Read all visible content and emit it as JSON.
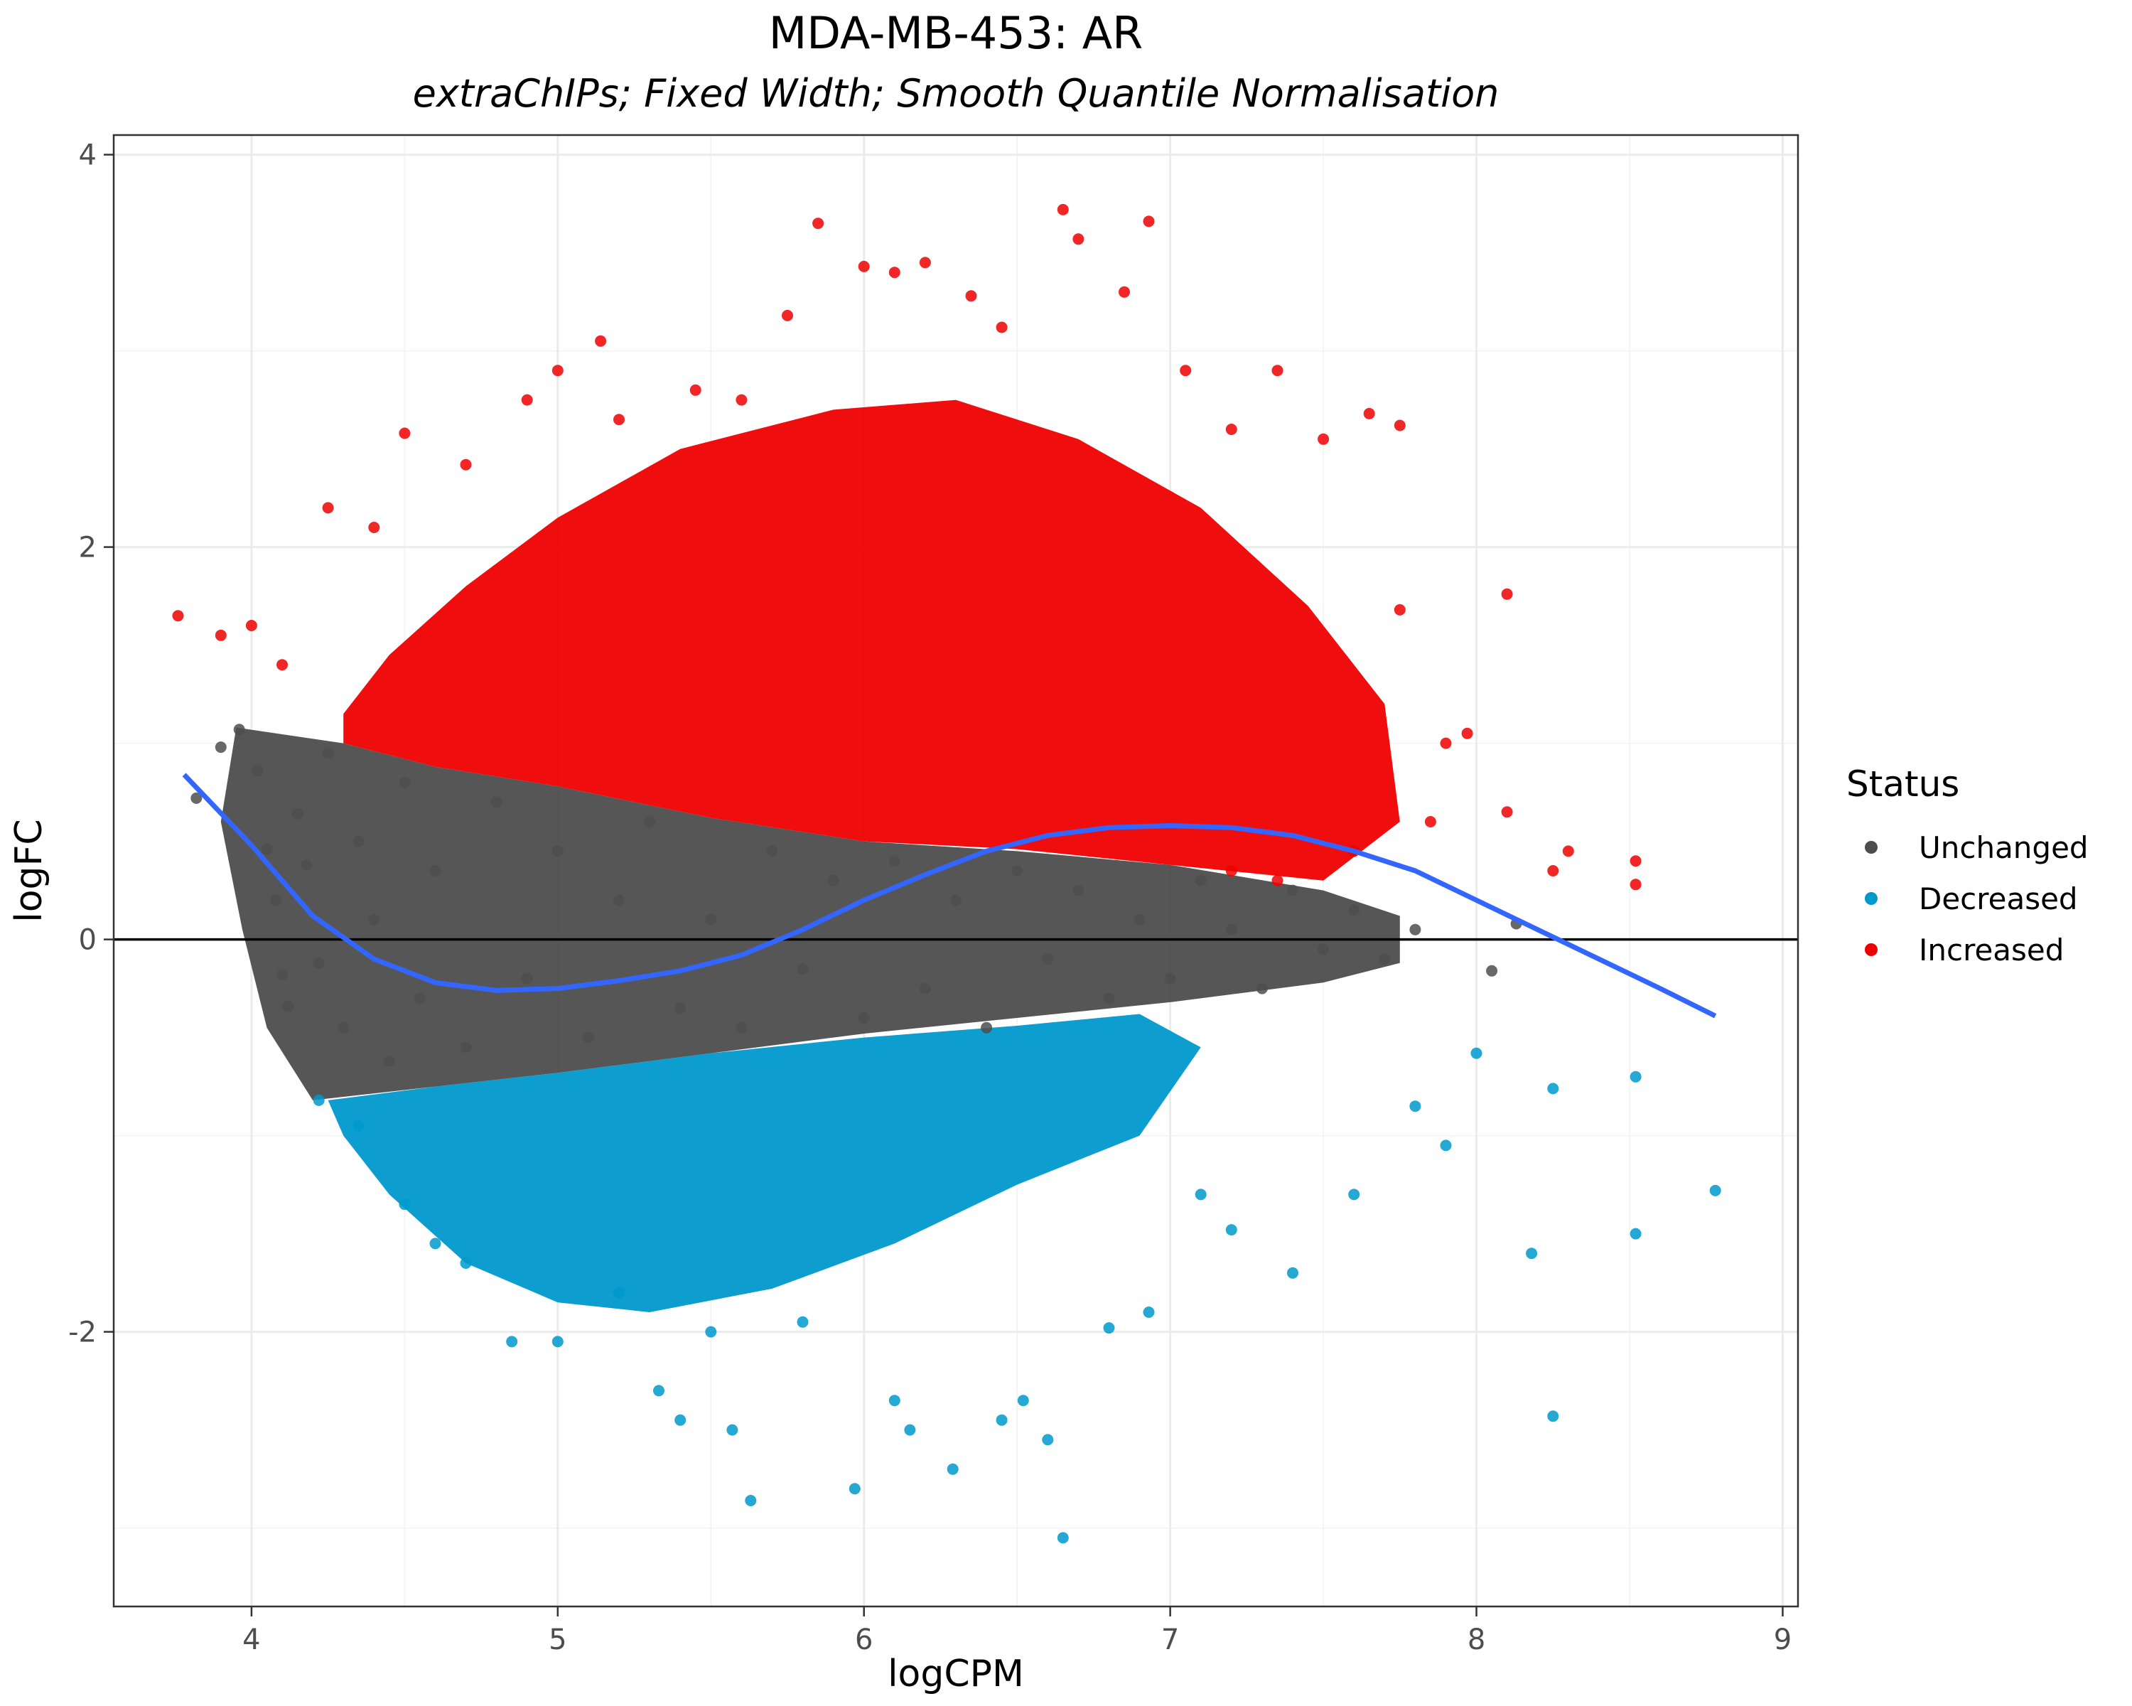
{
  "chart_data": {
    "type": "scatter",
    "title": "MDA-MB-453: AR",
    "subtitle": "extraChIPs; Fixed Width; Smooth Quantile Normalisation",
    "xlabel": "logCPM",
    "ylabel": "logFC",
    "xlim": [
      3.55,
      9.05
    ],
    "ylim": [
      -3.4,
      4.1
    ],
    "x_ticks": [
      {
        "value": 4,
        "label": "4"
      },
      {
        "value": 5,
        "label": "5"
      },
      {
        "value": 6,
        "label": "6"
      },
      {
        "value": 7,
        "label": "7"
      },
      {
        "value": 8,
        "label": "8"
      },
      {
        "value": 9,
        "label": "9"
      }
    ],
    "y_ticks": [
      {
        "value": -2,
        "label": "-2"
      },
      {
        "value": 0,
        "label": "0"
      },
      {
        "value": 2,
        "label": "2"
      },
      {
        "value": 4,
        "label": "4"
      }
    ],
    "grid": true,
    "reference_line_y": 0,
    "legend": {
      "title": "Status",
      "position": "right",
      "entries": [
        {
          "label": "Unchanged",
          "color": "#4d4d4d"
        },
        {
          "label": "Decreased",
          "color": "#0099cc"
        },
        {
          "label": "Increased",
          "color": "#ee0000"
        }
      ]
    },
    "series": [
      {
        "name": "Unchanged",
        "color": "#4d4d4d",
        "points": [
          [
            3.82,
            0.72
          ],
          [
            3.9,
            0.98
          ],
          [
            3.96,
            1.07
          ],
          [
            4.02,
            0.86
          ],
          [
            4.05,
            0.46
          ],
          [
            4.08,
            0.2
          ],
          [
            4.1,
            -0.18
          ],
          [
            4.12,
            -0.34
          ],
          [
            4.15,
            0.64
          ],
          [
            4.18,
            0.38
          ],
          [
            4.22,
            -0.12
          ],
          [
            4.25,
            0.95
          ],
          [
            4.3,
            -0.45
          ],
          [
            4.35,
            0.5
          ],
          [
            4.4,
            0.1
          ],
          [
            4.45,
            -0.62
          ],
          [
            4.5,
            0.8
          ],
          [
            4.55,
            -0.3
          ],
          [
            4.6,
            0.35
          ],
          [
            4.7,
            -0.55
          ],
          [
            4.8,
            0.7
          ],
          [
            4.9,
            -0.2
          ],
          [
            5.0,
            0.45
          ],
          [
            5.1,
            -0.5
          ],
          [
            5.2,
            0.2
          ],
          [
            5.3,
            0.6
          ],
          [
            5.4,
            -0.35
          ],
          [
            5.5,
            0.1
          ],
          [
            5.6,
            -0.45
          ],
          [
            5.7,
            0.45
          ],
          [
            5.8,
            -0.15
          ],
          [
            5.9,
            0.3
          ],
          [
            6.0,
            -0.4
          ],
          [
            6.1,
            0.4
          ],
          [
            6.2,
            -0.25
          ],
          [
            6.3,
            0.2
          ],
          [
            6.4,
            -0.45
          ],
          [
            6.5,
            0.35
          ],
          [
            6.6,
            -0.1
          ],
          [
            6.7,
            0.25
          ],
          [
            6.8,
            -0.3
          ],
          [
            6.9,
            0.1
          ],
          [
            7.0,
            -0.2
          ],
          [
            7.1,
            0.3
          ],
          [
            7.2,
            0.05
          ],
          [
            7.3,
            -0.25
          ],
          [
            7.4,
            0.25
          ],
          [
            7.5,
            -0.05
          ],
          [
            7.6,
            0.15
          ],
          [
            7.7,
            -0.1
          ],
          [
            7.8,
            0.05
          ],
          [
            8.05,
            -0.16
          ],
          [
            8.13,
            0.08
          ]
        ]
      },
      {
        "name": "Decreased",
        "color": "#0099cc",
        "points": [
          [
            4.22,
            -0.82
          ],
          [
            4.35,
            -0.95
          ],
          [
            4.5,
            -1.35
          ],
          [
            4.6,
            -1.55
          ],
          [
            4.7,
            -1.65
          ],
          [
            4.85,
            -2.05
          ],
          [
            5.0,
            -2.05
          ],
          [
            5.2,
            -1.8
          ],
          [
            5.33,
            -2.3
          ],
          [
            5.4,
            -2.45
          ],
          [
            5.5,
            -2.0
          ],
          [
            5.57,
            -2.5
          ],
          [
            5.63,
            -2.86
          ],
          [
            5.8,
            -1.95
          ],
          [
            5.97,
            -2.8
          ],
          [
            6.1,
            -2.35
          ],
          [
            6.15,
            -2.5
          ],
          [
            6.29,
            -2.7
          ],
          [
            6.45,
            -2.45
          ],
          [
            6.52,
            -2.35
          ],
          [
            6.6,
            -2.55
          ],
          [
            6.65,
            -3.05
          ],
          [
            6.8,
            -1.98
          ],
          [
            6.93,
            -1.9
          ],
          [
            7.1,
            -1.3
          ],
          [
            7.2,
            -1.48
          ],
          [
            7.4,
            -1.7
          ],
          [
            7.6,
            -1.3
          ],
          [
            7.8,
            -0.85
          ],
          [
            7.9,
            -1.05
          ],
          [
            8.0,
            -0.58
          ],
          [
            8.18,
            -1.6
          ],
          [
            8.25,
            -0.76
          ],
          [
            8.25,
            -2.43
          ],
          [
            8.52,
            -0.7
          ],
          [
            8.52,
            -1.5
          ],
          [
            8.78,
            -1.28
          ]
        ]
      },
      {
        "name": "Increased",
        "color": "#ee0000",
        "points": [
          [
            3.76,
            1.65
          ],
          [
            3.9,
            1.55
          ],
          [
            4.0,
            1.6
          ],
          [
            4.1,
            1.4
          ],
          [
            4.25,
            2.2
          ],
          [
            4.4,
            2.1
          ],
          [
            4.5,
            2.58
          ],
          [
            4.7,
            2.42
          ],
          [
            4.9,
            2.75
          ],
          [
            5.0,
            2.9
          ],
          [
            5.14,
            3.05
          ],
          [
            5.2,
            2.65
          ],
          [
            5.45,
            2.8
          ],
          [
            5.6,
            2.75
          ],
          [
            5.75,
            3.18
          ],
          [
            5.85,
            3.65
          ],
          [
            6.0,
            3.43
          ],
          [
            6.1,
            3.4
          ],
          [
            6.2,
            3.45
          ],
          [
            6.35,
            3.28
          ],
          [
            6.45,
            3.12
          ],
          [
            6.65,
            3.72
          ],
          [
            6.7,
            3.57
          ],
          [
            6.85,
            3.3
          ],
          [
            6.93,
            3.66
          ],
          [
            7.05,
            2.9
          ],
          [
            7.2,
            2.6
          ],
          [
            7.35,
            2.9
          ],
          [
            7.5,
            2.55
          ],
          [
            7.65,
            2.68
          ],
          [
            7.75,
            2.62
          ],
          [
            7.75,
            1.68
          ],
          [
            7.9,
            1.0
          ],
          [
            7.97,
            1.05
          ],
          [
            8.1,
            1.76
          ],
          [
            8.1,
            0.65
          ],
          [
            8.3,
            0.45
          ],
          [
            8.52,
            0.4
          ],
          [
            8.52,
            0.28
          ],
          [
            8.25,
            0.35
          ],
          [
            7.85,
            0.6
          ],
          [
            7.6,
            0.45
          ],
          [
            7.35,
            0.3
          ],
          [
            7.2,
            0.35
          ]
        ]
      }
    ],
    "bulk_bands": [
      {
        "name": "Unchanged",
        "color": "#4d4d4d",
        "boundary": [
          [
            3.95,
            1.08
          ],
          [
            4.3,
            1.0
          ],
          [
            4.6,
            0.88
          ],
          [
            5.0,
            0.78
          ],
          [
            5.5,
            0.62
          ],
          [
            6.0,
            0.5
          ],
          [
            6.5,
            0.45
          ],
          [
            7.0,
            0.38
          ],
          [
            7.5,
            0.25
          ],
          [
            7.75,
            0.12
          ],
          [
            7.75,
            -0.12
          ],
          [
            7.5,
            -0.22
          ],
          [
            7.0,
            -0.32
          ],
          [
            6.5,
            -0.4
          ],
          [
            6.0,
            -0.48
          ],
          [
            5.5,
            -0.58
          ],
          [
            5.0,
            -0.68
          ],
          [
            4.6,
            -0.75
          ],
          [
            4.2,
            -0.82
          ],
          [
            4.05,
            -0.45
          ],
          [
            3.97,
            0.05
          ],
          [
            3.9,
            0.6
          ]
        ]
      },
      {
        "name": "Decreased",
        "color": "#0099cc",
        "boundary": [
          [
            4.25,
            -0.82
          ],
          [
            4.6,
            -0.75
          ],
          [
            5.0,
            -0.68
          ],
          [
            5.5,
            -0.58
          ],
          [
            6.0,
            -0.5
          ],
          [
            6.5,
            -0.44
          ],
          [
            6.9,
            -0.38
          ],
          [
            7.1,
            -0.55
          ],
          [
            6.9,
            -1.0
          ],
          [
            6.5,
            -1.25
          ],
          [
            6.1,
            -1.55
          ],
          [
            5.7,
            -1.78
          ],
          [
            5.3,
            -1.9
          ],
          [
            5.0,
            -1.85
          ],
          [
            4.7,
            -1.65
          ],
          [
            4.45,
            -1.3
          ],
          [
            4.3,
            -1.0
          ]
        ]
      },
      {
        "name": "Increased",
        "color": "#ee0000",
        "boundary": [
          [
            4.3,
            1.0
          ],
          [
            4.6,
            0.88
          ],
          [
            5.0,
            0.78
          ],
          [
            5.5,
            0.62
          ],
          [
            6.0,
            0.5
          ],
          [
            6.5,
            0.46
          ],
          [
            7.0,
            0.38
          ],
          [
            7.5,
            0.3
          ],
          [
            7.75,
            0.6
          ],
          [
            7.7,
            1.2
          ],
          [
            7.45,
            1.7
          ],
          [
            7.1,
            2.2
          ],
          [
            6.7,
            2.55
          ],
          [
            6.3,
            2.75
          ],
          [
            5.9,
            2.7
          ],
          [
            5.4,
            2.5
          ],
          [
            5.0,
            2.15
          ],
          [
            4.7,
            1.8
          ],
          [
            4.45,
            1.45
          ],
          [
            4.3,
            1.15
          ]
        ]
      }
    ],
    "trend_line": {
      "color": "#3366ff",
      "points": [
        [
          3.78,
          0.84
        ],
        [
          4.0,
          0.48
        ],
        [
          4.2,
          0.12
        ],
        [
          4.4,
          -0.1
        ],
        [
          4.6,
          -0.22
        ],
        [
          4.8,
          -0.26
        ],
        [
          5.0,
          -0.25
        ],
        [
          5.2,
          -0.21
        ],
        [
          5.4,
          -0.16
        ],
        [
          5.6,
          -0.08
        ],
        [
          5.8,
          0.05
        ],
        [
          6.0,
          0.2
        ],
        [
          6.2,
          0.33
        ],
        [
          6.4,
          0.45
        ],
        [
          6.6,
          0.53
        ],
        [
          6.8,
          0.57
        ],
        [
          7.0,
          0.58
        ],
        [
          7.2,
          0.57
        ],
        [
          7.4,
          0.53
        ],
        [
          7.6,
          0.45
        ],
        [
          7.8,
          0.35
        ],
        [
          8.0,
          0.2
        ],
        [
          8.2,
          0.05
        ],
        [
          8.4,
          -0.1
        ],
        [
          8.6,
          -0.25
        ],
        [
          8.78,
          -0.39
        ]
      ]
    }
  }
}
